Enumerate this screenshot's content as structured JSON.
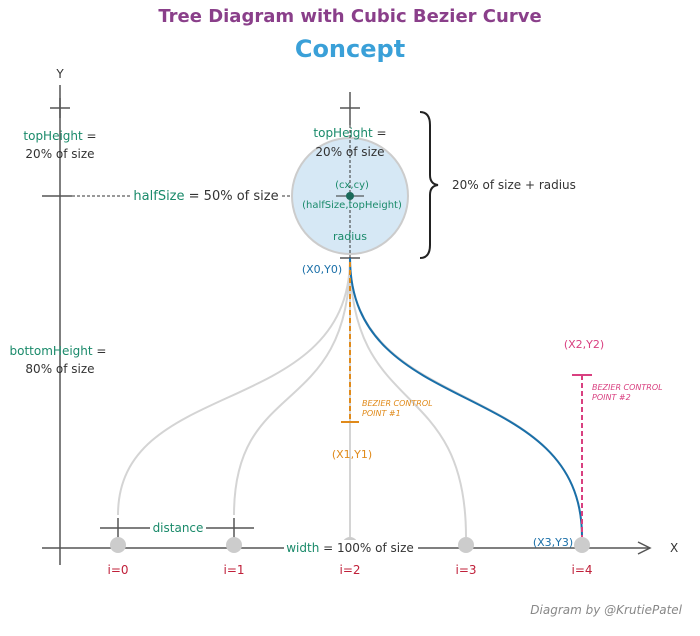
{
  "header": {
    "title": "Tree Diagram with Cubic Bezier Curve",
    "subtitle": "Concept"
  },
  "axes": {
    "y": "Y",
    "x": "X"
  },
  "left": {
    "top_term": "topHeight",
    "top_eq": " =",
    "top_value": "20% of size",
    "half_term": "halfSize",
    "half_eq": " = 50% of size",
    "bottom_term": "bottomHeight",
    "bottom_eq": " =",
    "bottom_value": "80% of size"
  },
  "circle": {
    "top_term": "topHeight",
    "top_eq": " =",
    "top_value": "20% of size",
    "center": "(cx,cy)",
    "center_def": "(halfSize,topHeight)",
    "radius": "radius",
    "brace": "20% of size + radius",
    "start": "(X0,Y0)"
  },
  "control1": {
    "note_line1": "BEZIER CONTROL",
    "note_line2": "POINT #1",
    "point": "(X1,Y1)"
  },
  "control2": {
    "point": "(X2,Y2)",
    "note_line1": "BEZIER CONTROL",
    "note_line2": "POINT #2"
  },
  "bottom": {
    "distance": "distance",
    "width_term": "width",
    "width_eq": " = 100% of size",
    "end": "(X3,Y3)"
  },
  "nodes": [
    "i=0",
    "i=1",
    "i=2",
    "i=3",
    "i=4"
  ],
  "credit": "Diagram by @KrutiePatel"
}
